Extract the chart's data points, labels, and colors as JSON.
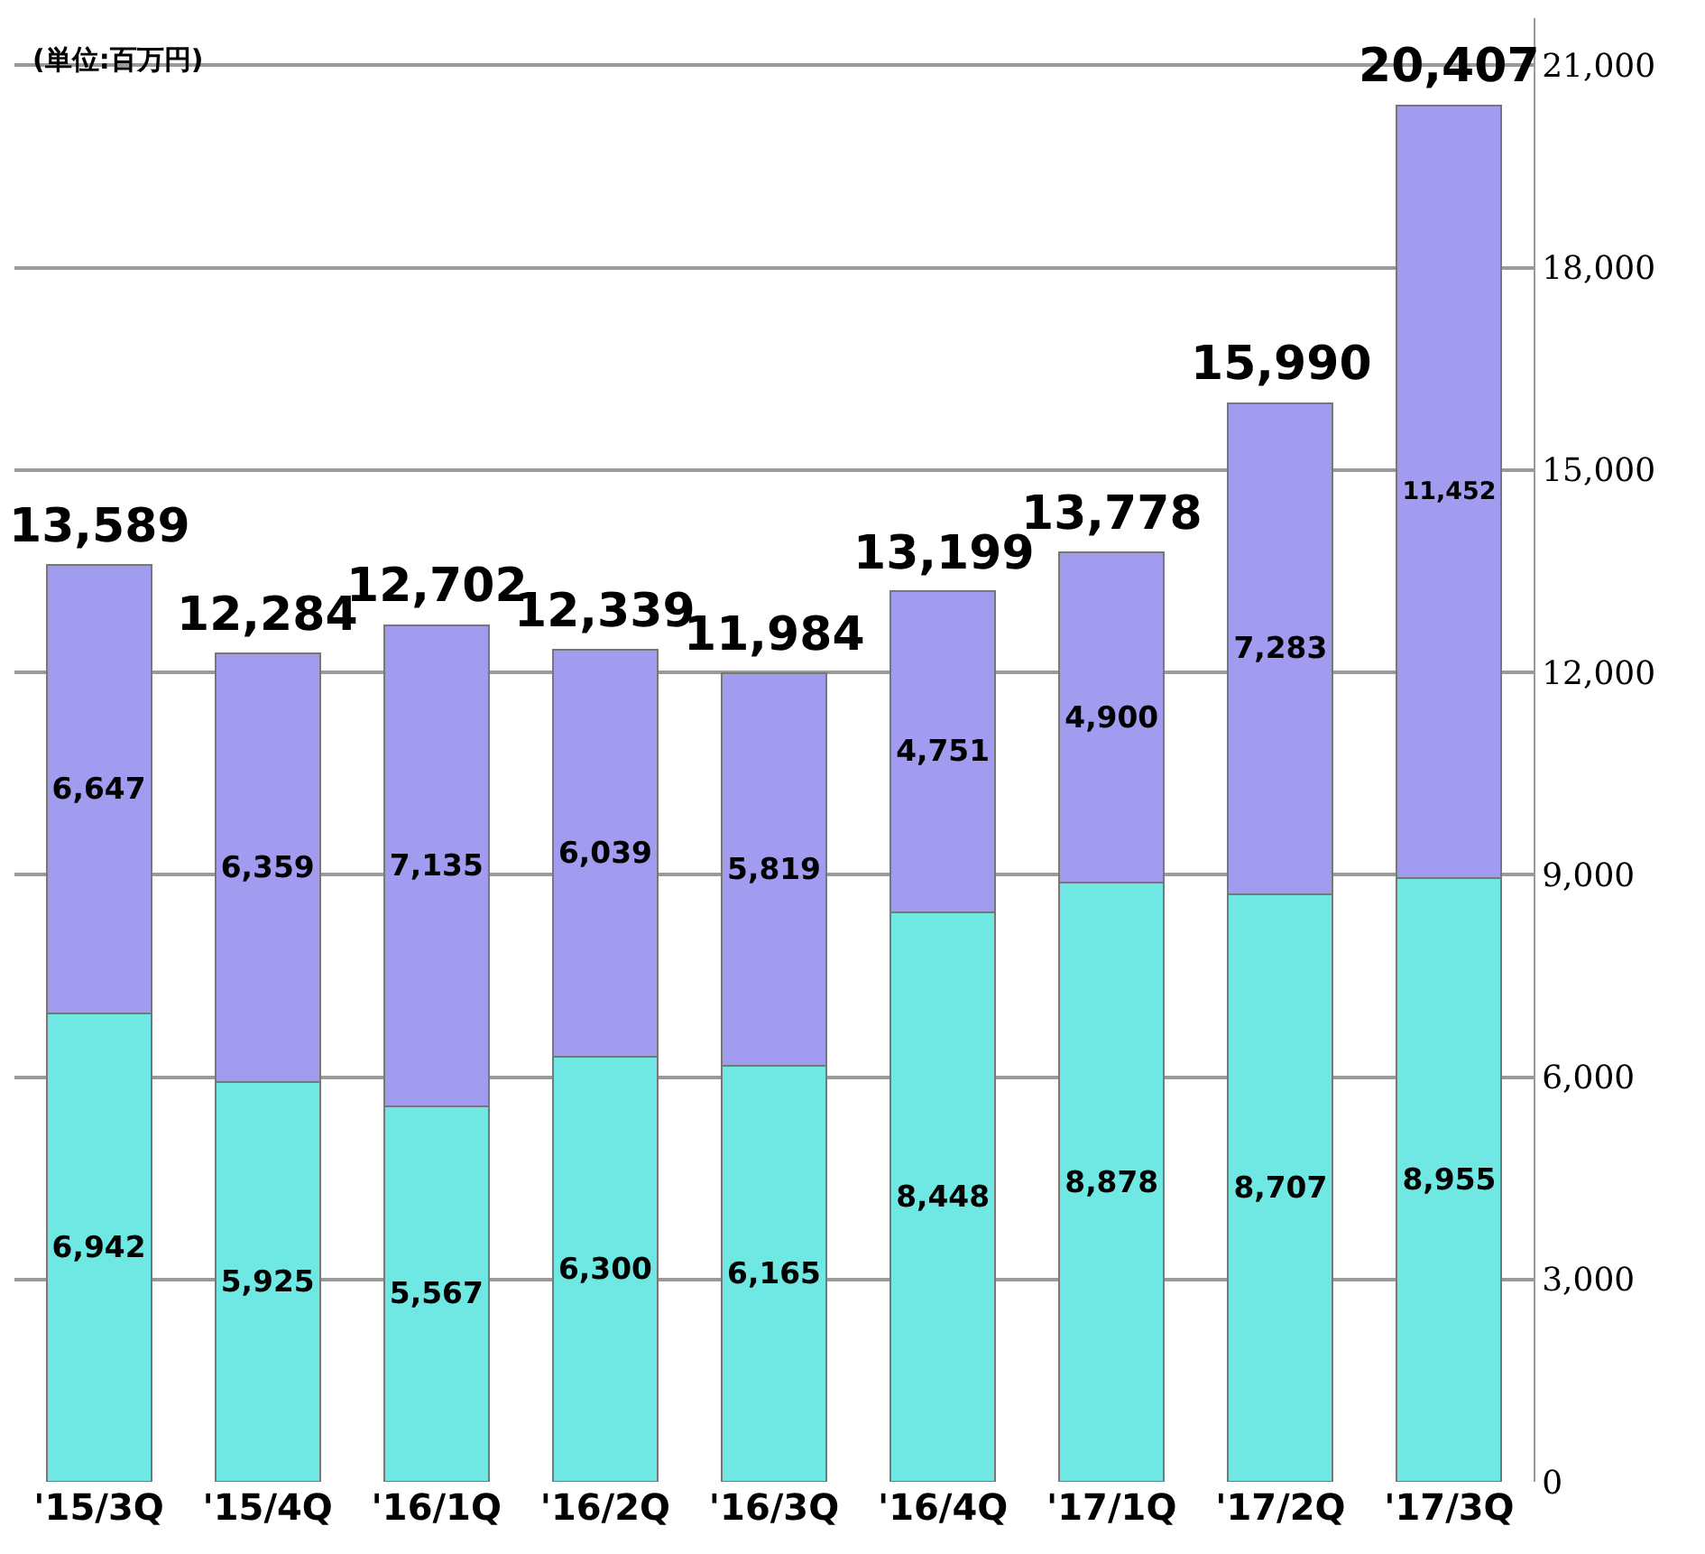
{
  "chart_data": {
    "type": "bar",
    "stacked": true,
    "categories": [
      "'15/3Q",
      "'15/4Q",
      "'16/1Q",
      "'16/2Q",
      "'16/3Q",
      "'16/4Q",
      "'17/1Q",
      "'17/2Q",
      "'17/3Q"
    ],
    "series": [
      {
        "color": "#6fe8e4",
        "values": [
          6942,
          5925,
          5567,
          6300,
          6165,
          8448,
          8878,
          8707,
          8955
        ],
        "value_labels": [
          "6,942",
          "5,925",
          "5,567",
          "6,300",
          "6,165",
          "8,448",
          "8,878",
          "8,707",
          "8,955"
        ]
      },
      {
        "color": "#a29cf0",
        "values": [
          6647,
          6359,
          7135,
          6039,
          5819,
          4751,
          4900,
          7283,
          11452
        ],
        "value_labels": [
          "6,647",
          "6,359",
          "7,135",
          "6,039",
          "5,819",
          "4,751",
          "4,900",
          "7,283",
          "11,452"
        ]
      }
    ],
    "totals": [
      "13,589",
      "12,284",
      "12,702",
      "12,339",
      "11,984",
      "13,199",
      "13,778",
      "15,990",
      "20,407"
    ],
    "ylim": [
      0,
      21700
    ],
    "yticks": [
      0,
      {
        "value": 3000,
        "label": "3,000"
      },
      {
        "value": 6000,
        "label": "6,000"
      },
      {
        "value": 9000,
        "label": "9,000"
      },
      {
        "value": 12000,
        "label": "12,000"
      },
      {
        "value": 15000,
        "label": "15,000"
      },
      {
        "value": 18000,
        "label": "18,000"
      },
      {
        "value": 21000,
        "label": "21,000"
      }
    ],
    "grid": "y",
    "annotations": [
      "(単位:百万円)"
    ]
  }
}
